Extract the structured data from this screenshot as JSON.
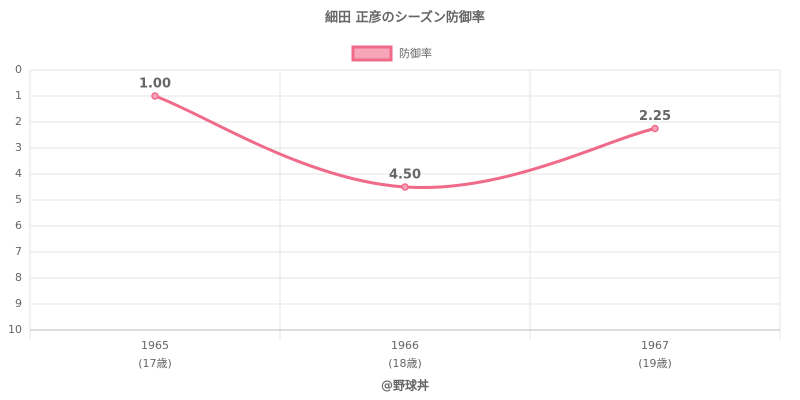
{
  "chart_data": {
    "type": "line",
    "title": "細田 正彦のシーズン防御率",
    "categories": [
      "1965",
      "1966",
      "1967"
    ],
    "category_sublabels": [
      "(17歳)",
      "(18歳)",
      "(19歳)"
    ],
    "series": [
      {
        "name": "防御率",
        "color": "#f06a8a",
        "values": [
          1.0,
          4.5,
          2.25
        ],
        "value_labels": [
          "1.00",
          "4.50",
          "2.25"
        ]
      }
    ],
    "ylim": [
      0,
      10
    ],
    "yticks": [
      0,
      1,
      2,
      3,
      4,
      5,
      6,
      7,
      8,
      9,
      10
    ],
    "y_reversed": true,
    "grid": true,
    "footer": "@野球丼"
  }
}
